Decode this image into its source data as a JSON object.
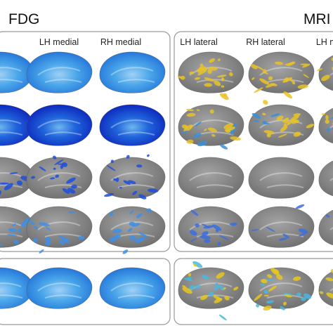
{
  "panels": [
    {
      "title": "FDG",
      "columns": [
        "LH medial",
        "RH medial"
      ]
    },
    {
      "title": "MRI",
      "columns": [
        "LH lateral",
        "RH lateral",
        "LH medial"
      ]
    }
  ]
}
